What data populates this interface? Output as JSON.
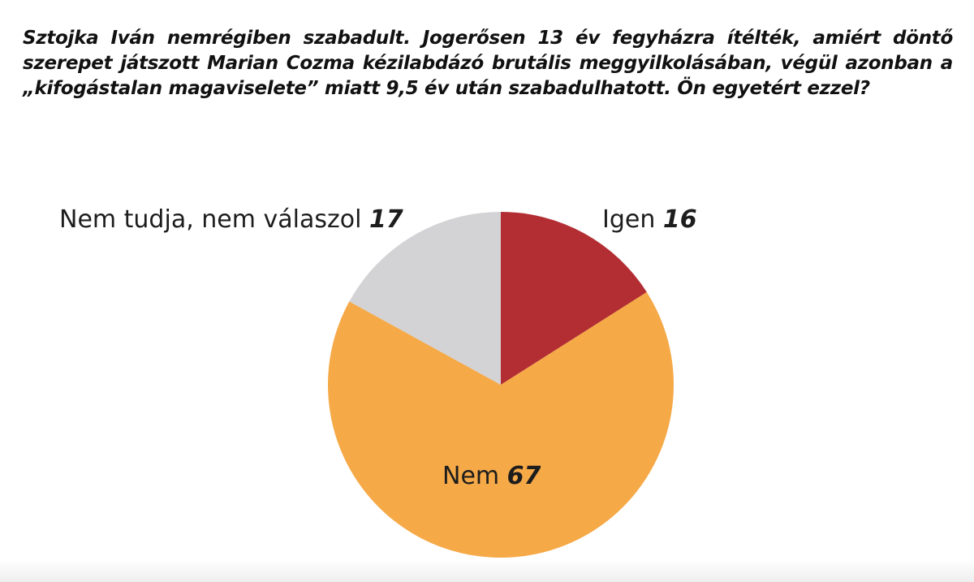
{
  "question": "Sztojka Iván nemrégiben szabadult. Jogerősen 13 év fegyházra ítélték, amiért döntő szerepet játszott Marian Cozma kézilabdázó brutális meggyilkolásában, végül azonban a „kifogástalan magaviselete” mi­att 9,5 év után szabadulhatott. Ön egyetért ezzel?",
  "chart_data": {
    "type": "pie",
    "title": "",
    "slices": [
      {
        "label": "Igen",
        "value": 16,
        "color": "#b22e33"
      },
      {
        "label": "Nem",
        "value": 67,
        "color": "#f5a947"
      },
      {
        "label": "Nem tudja, nem válaszol",
        "value": 17,
        "color": "#d3d3d5"
      }
    ],
    "start": "12 o'clock",
    "direction": "clockwise"
  }
}
